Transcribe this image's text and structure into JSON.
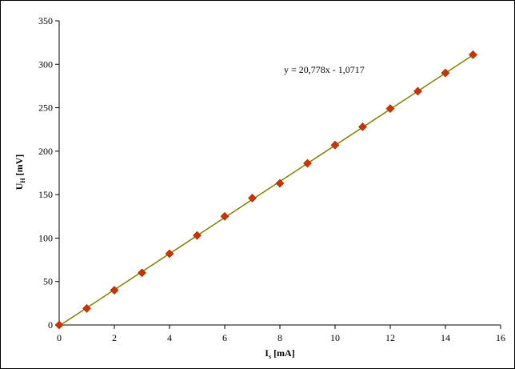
{
  "chart_data": {
    "type": "scatter",
    "title": "",
    "xlabel": {
      "main": "I",
      "sub": "s",
      "unit": " [mA]"
    },
    "ylabel": {
      "main": "U",
      "sub": "H",
      "unit": " [mV]"
    },
    "xlim": [
      0,
      16
    ],
    "ylim": [
      0,
      350
    ],
    "xticks": [
      0,
      2,
      4,
      6,
      8,
      10,
      12,
      14,
      16
    ],
    "yticks": [
      0,
      50,
      100,
      150,
      200,
      250,
      300,
      350
    ],
    "grid": false,
    "legend": "none",
    "series": [
      {
        "marker": "diamond",
        "color": "#cc3300",
        "x": [
          0,
          1,
          2,
          3,
          4,
          5,
          6,
          7,
          8,
          9,
          10,
          11,
          12,
          13,
          14,
          15
        ],
        "y": [
          0,
          19,
          40,
          60,
          82,
          103,
          125,
          146,
          163,
          186,
          207,
          228,
          249,
          269,
          290,
          311
        ]
      }
    ],
    "trendline": {
      "slope": 20.778,
      "intercept": -1.0717,
      "x_range": [
        0,
        15
      ],
      "color": "#808000",
      "equation_label": "y = 20,778x - 1,0717"
    }
  }
}
